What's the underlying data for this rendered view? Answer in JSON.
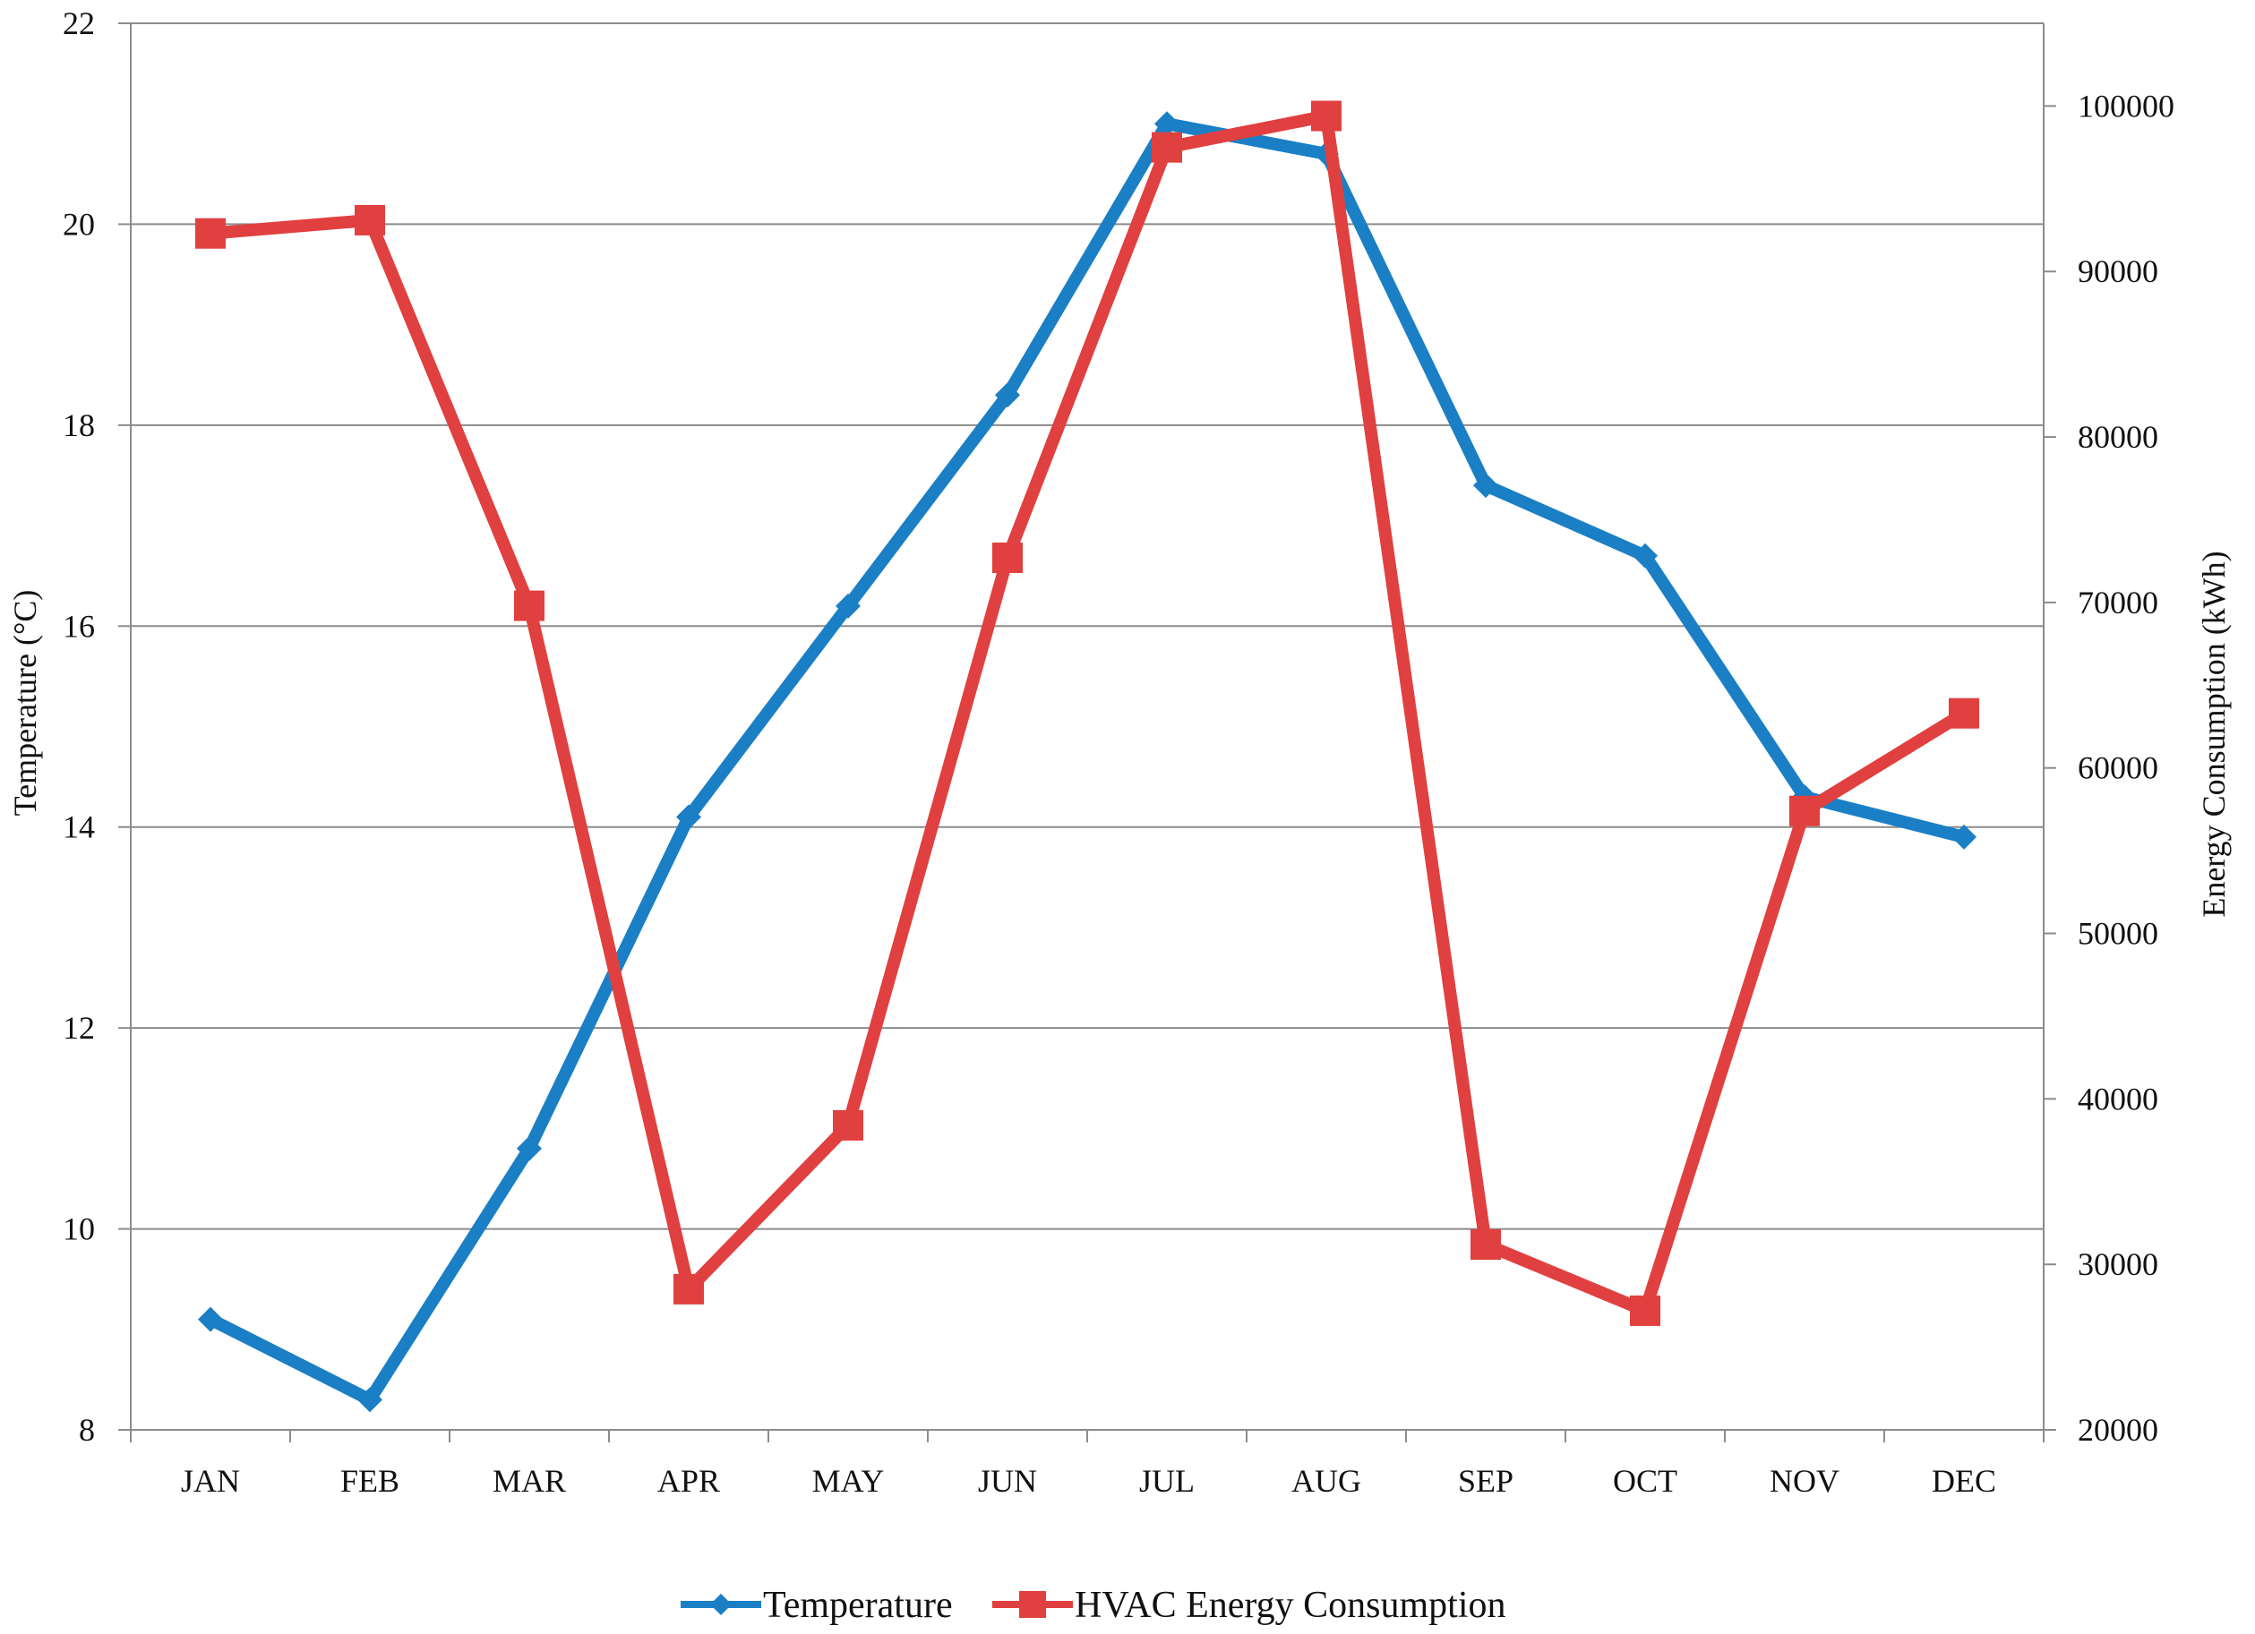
{
  "chart_data": {
    "type": "line",
    "categories": [
      "JAN",
      "FEB",
      "MAR",
      "APR",
      "MAY",
      "JUN",
      "JUL",
      "AUG",
      "SEP",
      "OCT",
      "NOV",
      "DEC"
    ],
    "series": [
      {
        "name": "Temperature",
        "axis": "left",
        "color": "#1a7fc4",
        "marker": "diamond",
        "values": [
          9.1,
          8.3,
          10.8,
          14.1,
          16.2,
          18.3,
          21.0,
          20.7,
          17.4,
          16.7,
          14.3,
          13.9
        ]
      },
      {
        "name": "HVAC Energy Consumption",
        "axis": "right",
        "color": "#e0403f",
        "marker": "square",
        "values": [
          92300,
          93100,
          69800,
          28500,
          38400,
          72700,
          97500,
          99400,
          31200,
          27200,
          57400,
          63300
        ]
      }
    ],
    "y_left": {
      "label": "Temperature  (°C)",
      "range": [
        8,
        22
      ],
      "ticks": [
        "8",
        "10",
        "12",
        "14",
        "16",
        "18",
        "20",
        "22"
      ]
    },
    "y_right": {
      "label": "Energy Consumption  (kWh)",
      "range": [
        20000,
        105000
      ],
      "ticks": [
        "20000",
        "30000",
        "40000",
        "50000",
        "60000",
        "70000",
        "80000",
        "90000",
        "100000"
      ]
    },
    "grid": true,
    "grid_color": "#8c8c8c",
    "axis_color": "#8c8c8c",
    "legend": {
      "position": "bottom"
    }
  }
}
